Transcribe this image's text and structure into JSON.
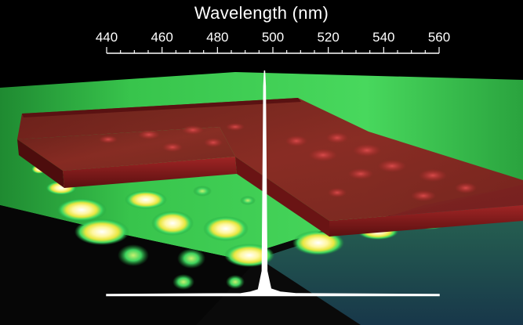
{
  "axis": {
    "title": "Wavelength (nm)",
    "ticks": [
      {
        "value": 440,
        "label": "440"
      },
      {
        "value": 460,
        "label": "460"
      },
      {
        "value": 480,
        "label": "480"
      },
      {
        "value": 500,
        "label": "500"
      },
      {
        "value": 520,
        "label": "520"
      },
      {
        "value": 540,
        "label": "540"
      },
      {
        "value": 560,
        "label": "560"
      }
    ],
    "range": [
      440,
      560
    ]
  },
  "spectrum": {
    "peak_wavelength": 497,
    "baseline_color": "#ffffff"
  },
  "colors": {
    "background": "#000000",
    "substrate_green": "#3fcf58",
    "slab_red": "#8b1c1c",
    "glow_yellow": "#f4f25a"
  }
}
